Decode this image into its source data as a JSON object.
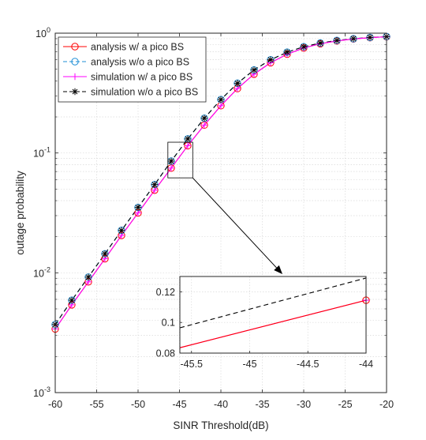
{
  "chart_data": {
    "type": "line",
    "xlabel": "SINR Threshold(dB)",
    "ylabel": "outage probability",
    "xlim": [
      -60,
      -20
    ],
    "ylim": [
      0.001,
      1
    ],
    "yscale": "log",
    "grid": true,
    "legend_position": "top-left",
    "x_ticks": [
      "-60",
      "-55",
      "-50",
      "-45",
      "-40",
      "-35",
      "-30",
      "-25",
      "-20"
    ],
    "y_ticks": [
      {
        "base": "10",
        "exp": "-3"
      },
      {
        "base": "10",
        "exp": "-2"
      },
      {
        "base": "10",
        "exp": "-1"
      },
      {
        "base": "10",
        "exp": "0"
      }
    ],
    "x": [
      -60,
      -58,
      -56,
      -54,
      -52,
      -50,
      -48,
      -46,
      -44,
      -42,
      -40,
      -38,
      -36,
      -34,
      -32,
      -30,
      -28,
      -26,
      -24,
      -22,
      -20
    ],
    "series": [
      {
        "name": "analysis w/ a pico BS",
        "color": "#ff0000",
        "line": "solid",
        "marker": "circle",
        "values": [
          0.0034,
          0.0054,
          0.0084,
          0.0131,
          0.0205,
          0.0316,
          0.0489,
          0.0748,
          0.115,
          0.171,
          0.248,
          0.345,
          0.455,
          0.567,
          0.668,
          0.752,
          0.816,
          0.862,
          0.895,
          0.918,
          0.934
        ]
      },
      {
        "name": "analysis w/o a pico BS",
        "color": "#1f8fd6",
        "line": "dashed",
        "marker": "circle",
        "values": [
          0.0037,
          0.0059,
          0.0092,
          0.0144,
          0.0226,
          0.0351,
          0.0545,
          0.0855,
          0.131,
          0.195,
          0.279,
          0.382,
          0.493,
          0.6,
          0.694,
          0.77,
          0.827,
          0.869,
          0.899,
          0.921,
          0.936
        ]
      },
      {
        "name": "simulation w/ a pico BS",
        "color": "#ff00ff",
        "line": "solid",
        "marker": "plus",
        "values": [
          0.0034,
          0.0054,
          0.0084,
          0.0131,
          0.0205,
          0.0316,
          0.0489,
          0.0748,
          0.115,
          0.171,
          0.248,
          0.345,
          0.455,
          0.567,
          0.668,
          0.752,
          0.816,
          0.862,
          0.895,
          0.918,
          0.934
        ]
      },
      {
        "name": "simulation w/o a pico BS",
        "color": "#000000",
        "line": "dashed",
        "marker": "asterisk",
        "values": [
          0.0037,
          0.0059,
          0.0092,
          0.0144,
          0.0226,
          0.0351,
          0.0545,
          0.0855,
          0.131,
          0.195,
          0.279,
          0.382,
          0.493,
          0.6,
          0.694,
          0.77,
          0.827,
          0.869,
          0.899,
          0.921,
          0.936
        ]
      }
    ],
    "inset": {
      "xlim": [
        -45.6,
        -44
      ],
      "ylim": [
        0.08,
        0.13
      ],
      "x_ticks": [
        "-45.5",
        "-45",
        "-44.5",
        "-44"
      ],
      "y_ticks": [
        "0.08",
        "0.1",
        "0.12"
      ],
      "zoom_box": {
        "x": [
          -46.4,
          -43.4
        ],
        "y": [
          0.062,
          0.123
        ]
      },
      "series": [
        {
          "color": "#000000",
          "line": "dashed",
          "x": [
            -45.6,
            -44
          ],
          "values": [
            0.0965,
            0.129
          ]
        },
        {
          "color": "#ff00ff",
          "line": "solid",
          "x": [
            -45.6,
            -44
          ],
          "values": [
            0.0835,
            0.1145
          ]
        },
        {
          "color": "#ff0000",
          "line": "solid",
          "x": [
            -45.6,
            -44
          ],
          "values": [
            0.0835,
            0.1145
          ]
        }
      ],
      "markers": [
        {
          "x": -44,
          "y": 0.1145,
          "marker": "circle",
          "color": "#ff0000"
        },
        {
          "x": -44,
          "y": 0.1145,
          "marker": "plus",
          "color": "#ff00ff"
        }
      ]
    }
  }
}
